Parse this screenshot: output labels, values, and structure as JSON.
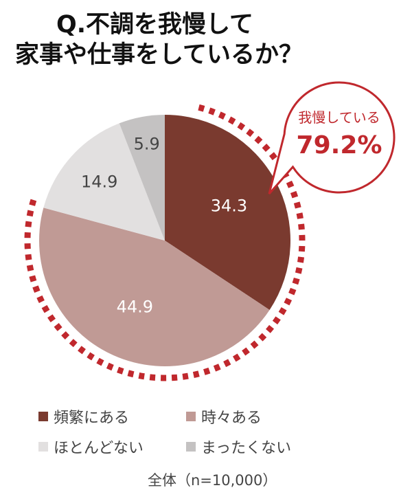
{
  "title": {
    "line1": "Q.不調を我慢して",
    "line2": "家事や仕事をしているか？"
  },
  "callout": {
    "label": "我慢している",
    "value": "79.2%",
    "color": "#c0282d"
  },
  "slices": [
    {
      "label": "頻繁にある",
      "value": 34.3,
      "display": "34.3",
      "color": "#7a3a2f",
      "text_color": "#ffffff"
    },
    {
      "label": "時々ある",
      "value": 44.9,
      "display": "44.9",
      "color": "#c09a95",
      "text_color": "#ffffff"
    },
    {
      "label": "ほとんどない",
      "value": 14.9,
      "display": "14.9",
      "color": "#e2e0e0",
      "text_color": "#444444"
    },
    {
      "label": "まったくない",
      "value": 5.9,
      "display": "5.9",
      "color": "#c4c2c2",
      "text_color": "#444444"
    }
  ],
  "legend": {
    "items": [
      {
        "label": "頻繁にある",
        "color": "#7a3a2f"
      },
      {
        "label": "時々ある",
        "color": "#c09a95"
      },
      {
        "label": "ほとんどない",
        "color": "#e2e0e0"
      },
      {
        "label": "まったくない",
        "color": "#c4c2c2"
      }
    ]
  },
  "note": "全体（n=10,000）",
  "chart_data": {
    "type": "pie",
    "title": "Q.不調を我慢して家事や仕事をしているか？",
    "categories": [
      "頻繁にある",
      "時々ある",
      "ほとんどない",
      "まったくない"
    ],
    "values": [
      34.3,
      44.9,
      14.9,
      5.9
    ],
    "unit": "%",
    "sample": "全体（n=10,000）",
    "annotations": [
      {
        "text": "我慢している 79.2%",
        "covers": [
          "頻繁にある",
          "時々ある"
        ]
      }
    ],
    "legend_position": "bottom"
  }
}
